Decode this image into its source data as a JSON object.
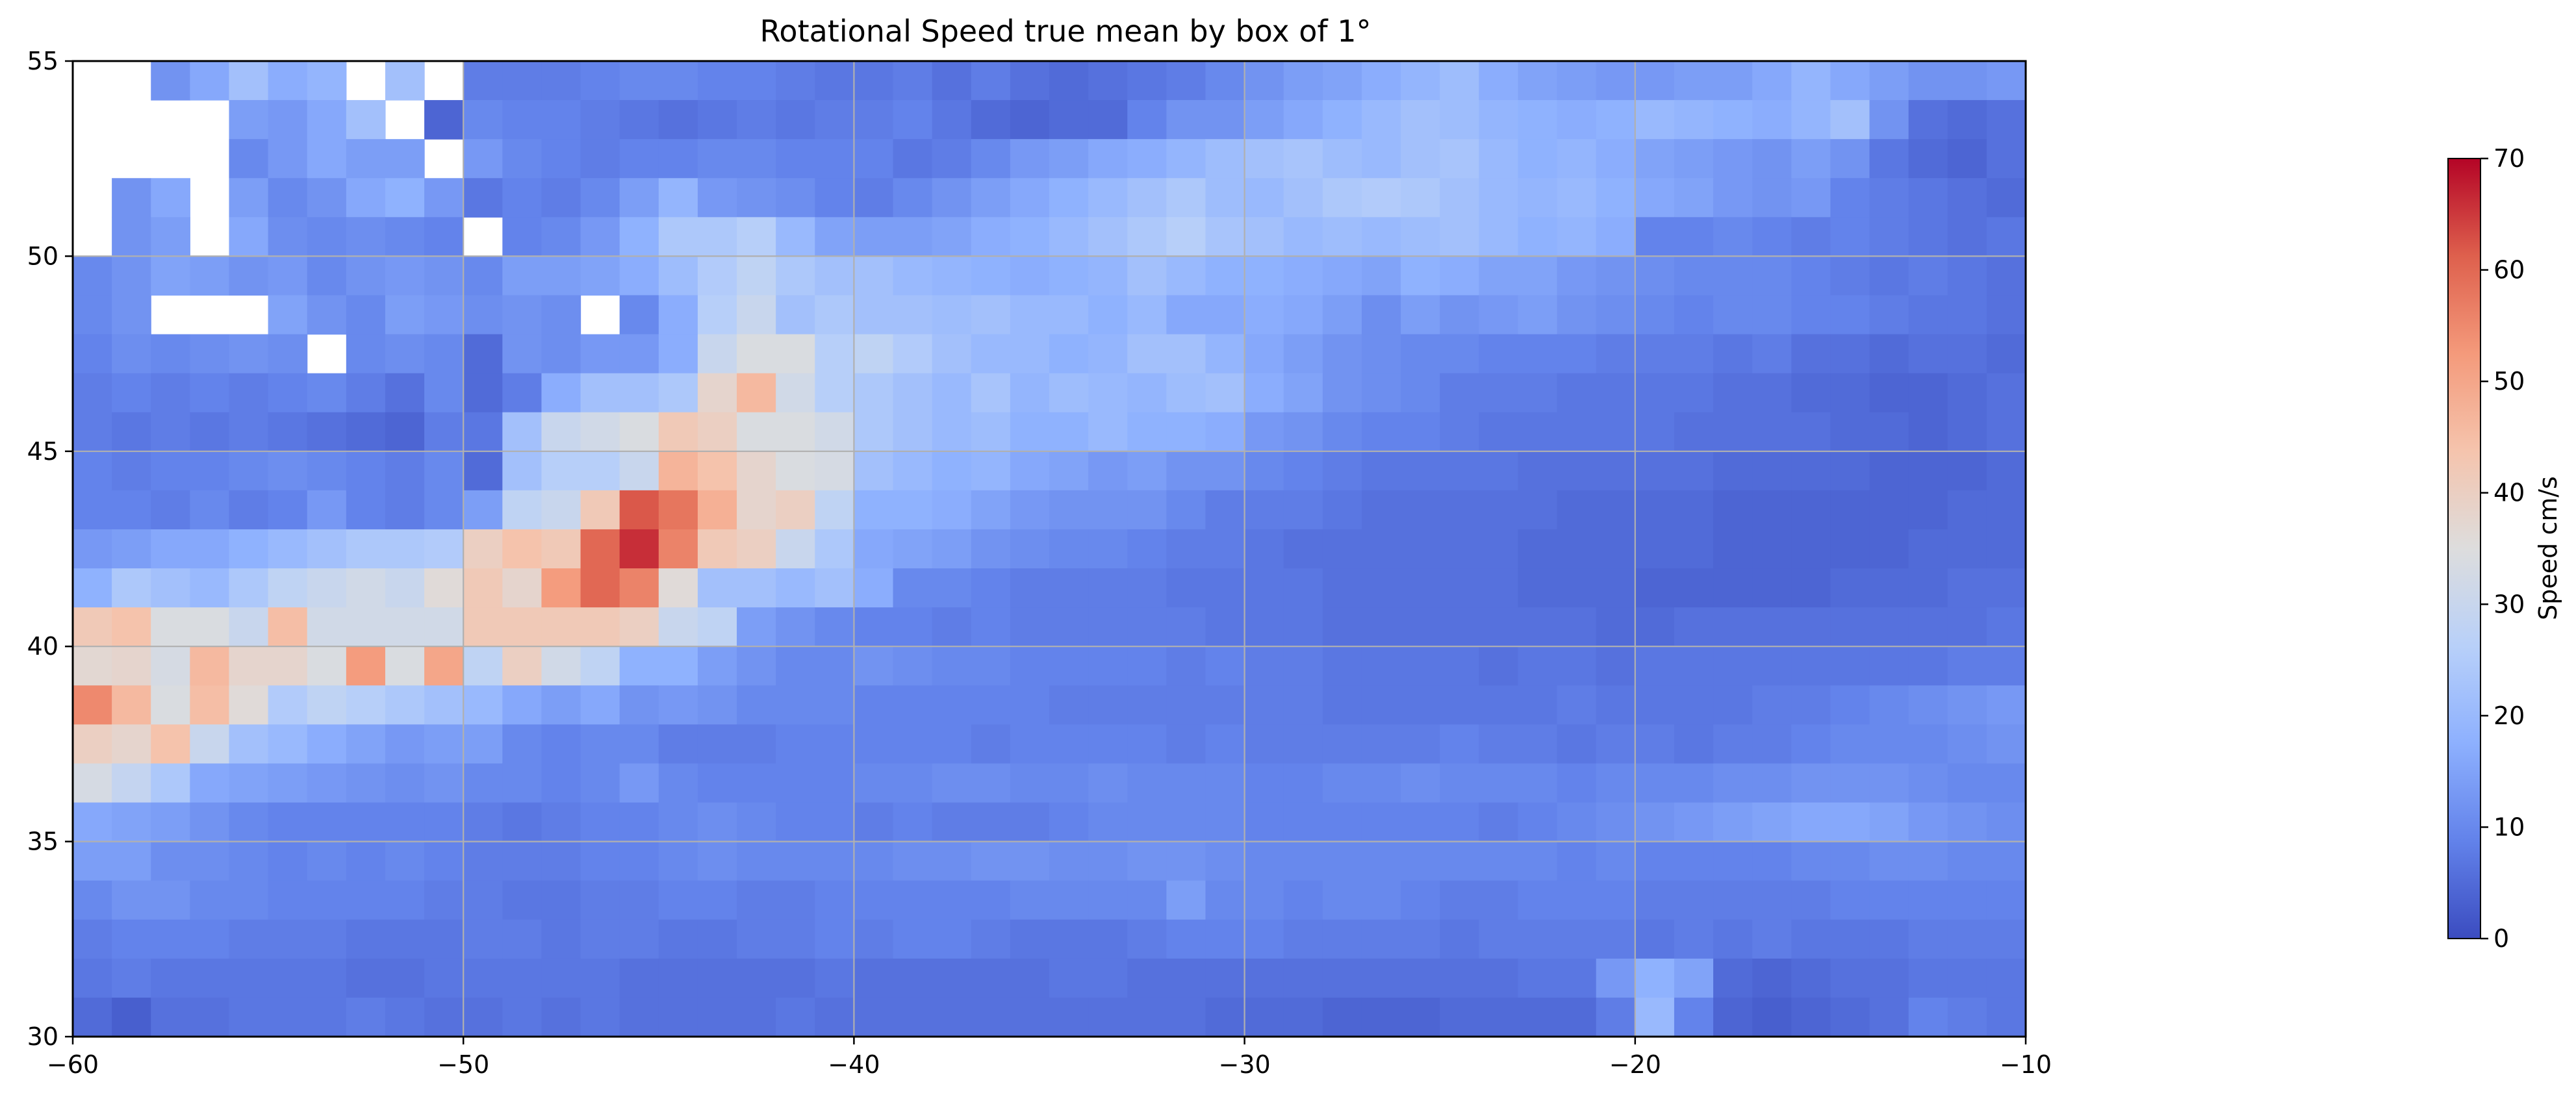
{
  "chart_data": {
    "type": "heatmap",
    "title": "Rotational Speed true mean by box of 1°",
    "xlabel": "",
    "ylabel": "",
    "xlim": [
      -60,
      -10
    ],
    "ylim": [
      30,
      55
    ],
    "xticks": [
      -60,
      -50,
      -40,
      -30,
      -20,
      -10
    ],
    "yticks": [
      30,
      35,
      40,
      45,
      50,
      55
    ],
    "grid": true,
    "colormap": "coolwarm",
    "colorbar": {
      "label": "Speed cm/s",
      "vmin": 0,
      "vmax": 70,
      "ticks": [
        0,
        10,
        20,
        30,
        40,
        50,
        60,
        70
      ]
    },
    "cell_size_deg": 1,
    "rows_from_lat": 55,
    "cols_from_lon": -60,
    "values": [
      [
        null,
        null,
        12,
        16,
        22,
        17,
        19,
        null,
        22,
        null,
        8,
        8,
        8,
        9,
        10,
        10,
        9,
        9,
        8,
        7,
        7,
        8,
        6,
        8,
        6,
        5,
        6,
        7,
        8,
        10,
        12,
        14,
        15,
        17,
        19,
        21,
        17,
        15,
        14,
        13,
        13,
        14,
        14,
        16,
        19,
        16,
        14,
        12,
        12,
        13
      ],
      [
        null,
        null,
        null,
        null,
        14,
        13,
        16,
        22,
        null,
        4,
        10,
        9,
        9,
        8,
        7,
        6,
        7,
        8,
        7,
        8,
        8,
        9,
        7,
        5,
        4,
        5,
        5,
        9,
        12,
        12,
        14,
        16,
        18,
        20,
        22,
        21,
        19,
        18,
        17,
        18,
        20,
        19,
        18,
        17,
        19,
        22,
        12,
        6,
        5,
        6
      ],
      [
        null,
        null,
        null,
        null,
        10,
        13,
        16,
        14,
        14,
        null,
        13,
        10,
        9,
        8,
        9,
        9,
        10,
        10,
        9,
        9,
        9,
        7,
        8,
        10,
        13,
        14,
        16,
        17,
        19,
        21,
        22,
        23,
        21,
        20,
        22,
        23,
        20,
        18,
        19,
        17,
        15,
        14,
        13,
        12,
        14,
        12,
        7,
        5,
        4,
        6
      ],
      [
        null,
        12,
        16,
        null,
        14,
        10,
        12,
        16,
        18,
        13,
        7,
        9,
        8,
        10,
        14,
        19,
        13,
        12,
        11,
        9,
        8,
        10,
        12,
        14,
        16,
        18,
        20,
        22,
        24,
        21,
        20,
        22,
        24,
        25,
        24,
        22,
        20,
        19,
        20,
        18,
        16,
        15,
        13,
        12,
        13,
        9,
        8,
        7,
        6,
        5
      ],
      [
        null,
        12,
        14,
        null,
        16,
        11,
        10,
        11,
        10,
        9,
        null,
        9,
        10,
        13,
        18,
        24,
        24,
        26,
        20,
        15,
        14,
        14,
        15,
        17,
        18,
        20,
        22,
        24,
        26,
        23,
        22,
        20,
        21,
        20,
        21,
        22,
        20,
        18,
        19,
        17,
        9,
        9,
        10,
        9,
        8,
        9,
        8,
        7,
        6,
        7
      ],
      [
        10,
        12,
        15,
        14,
        12,
        13,
        10,
        12,
        13,
        12,
        10,
        14,
        14,
        15,
        17,
        21,
        25,
        28,
        24,
        22,
        22,
        20,
        19,
        18,
        17,
        18,
        19,
        22,
        20,
        18,
        18,
        17,
        16,
        15,
        18,
        17,
        15,
        15,
        13,
        12,
        11,
        10,
        10,
        10,
        9,
        8,
        7,
        8,
        7,
        6
      ],
      [
        10,
        12,
        null,
        null,
        null,
        15,
        12,
        10,
        14,
        13,
        11,
        12,
        11,
        null,
        10,
        17,
        26,
        30,
        22,
        24,
        22,
        22,
        21,
        22,
        20,
        20,
        18,
        20,
        16,
        16,
        17,
        16,
        14,
        11,
        14,
        12,
        13,
        14,
        12,
        11,
        10,
        9,
        10,
        10,
        9,
        9,
        8,
        7,
        7,
        6
      ],
      [
        9,
        11,
        10,
        11,
        12,
        11,
        null,
        10,
        11,
        10,
        5,
        12,
        11,
        13,
        13,
        17,
        30,
        34,
        34,
        26,
        28,
        25,
        22,
        20,
        20,
        18,
        19,
        22,
        22,
        19,
        16,
        14,
        12,
        11,
        10,
        10,
        9,
        9,
        9,
        8,
        8,
        8,
        7,
        8,
        6,
        6,
        5,
        6,
        6,
        5
      ],
      [
        8,
        9,
        8,
        9,
        8,
        9,
        10,
        8,
        6,
        10,
        5,
        8,
        17,
        22,
        22,
        24,
        38,
        46,
        32,
        26,
        24,
        22,
        20,
        23,
        19,
        21,
        20,
        19,
        21,
        22,
        17,
        15,
        12,
        11,
        10,
        8,
        8,
        8,
        7,
        7,
        7,
        7,
        6,
        6,
        5,
        5,
        4,
        4,
        5,
        6
      ],
      [
        8,
        7,
        8,
        7,
        8,
        7,
        6,
        5,
        4,
        8,
        7,
        22,
        30,
        32,
        34,
        42,
        40,
        34,
        34,
        32,
        24,
        22,
        20,
        21,
        18,
        18,
        20,
        18,
        18,
        17,
        13,
        12,
        10,
        9,
        9,
        8,
        7,
        7,
        7,
        7,
        7,
        6,
        6,
        6,
        6,
        5,
        5,
        4,
        5,
        6
      ],
      [
        9,
        8,
        9,
        9,
        10,
        11,
        10,
        9,
        8,
        10,
        5,
        22,
        26,
        26,
        30,
        47,
        44,
        38,
        34,
        33,
        22,
        20,
        18,
        19,
        16,
        15,
        13,
        14,
        12,
        12,
        10,
        9,
        8,
        7,
        7,
        7,
        7,
        6,
        6,
        6,
        6,
        6,
        5,
        5,
        5,
        5,
        4,
        4,
        4,
        5
      ],
      [
        9,
        9,
        8,
        10,
        8,
        9,
        13,
        9,
        8,
        10,
        14,
        28,
        30,
        42,
        62,
        58,
        48,
        38,
        40,
        28,
        18,
        18,
        17,
        15,
        13,
        12,
        12,
        12,
        10,
        8,
        8,
        8,
        7,
        6,
        6,
        6,
        6,
        6,
        5,
        5,
        5,
        5,
        4,
        4,
        4,
        4,
        4,
        4,
        5,
        5
      ],
      [
        13,
        14,
        16,
        16,
        18,
        20,
        22,
        24,
        24,
        25,
        40,
        44,
        42,
        60,
        66,
        56,
        42,
        40,
        30,
        24,
        16,
        15,
        14,
        12,
        11,
        10,
        10,
        9,
        8,
        8,
        7,
        6,
        6,
        6,
        6,
        6,
        6,
        5,
        5,
        5,
        5,
        5,
        4,
        4,
        4,
        4,
        4,
        5,
        5,
        5
      ],
      [
        18,
        24,
        22,
        20,
        24,
        28,
        30,
        32,
        30,
        36,
        42,
        38,
        52,
        60,
        56,
        36,
        22,
        22,
        20,
        22,
        17,
        10,
        10,
        9,
        8,
        8,
        8,
        8,
        7,
        7,
        7,
        7,
        6,
        6,
        6,
        6,
        6,
        5,
        5,
        5,
        4,
        4,
        4,
        4,
        4,
        5,
        5,
        5,
        6,
        6
      ],
      [
        42,
        44,
        34,
        34,
        30,
        45,
        32,
        32,
        32,
        32,
        42,
        42,
        42,
        42,
        40,
        30,
        28,
        14,
        12,
        10,
        9,
        9,
        8,
        9,
        8,
        8,
        8,
        8,
        8,
        7,
        7,
        7,
        6,
        6,
        6,
        6,
        6,
        6,
        6,
        5,
        5,
        6,
        6,
        6,
        6,
        6,
        6,
        6,
        6,
        7
      ],
      [
        37,
        38,
        33,
        46,
        38,
        38,
        34,
        52,
        34,
        50,
        28,
        40,
        32,
        28,
        18,
        18,
        14,
        12,
        10,
        10,
        12,
        11,
        10,
        10,
        9,
        9,
        9,
        9,
        8,
        9,
        8,
        8,
        7,
        7,
        7,
        7,
        6,
        7,
        7,
        6,
        7,
        7,
        7,
        7,
        7,
        7,
        7,
        7,
        8,
        8
      ],
      [
        55,
        46,
        34,
        45,
        36,
        25,
        28,
        26,
        24,
        22,
        20,
        16,
        14,
        16,
        12,
        13,
        12,
        10,
        10,
        10,
        9,
        9,
        9,
        9,
        9,
        8,
        8,
        8,
        8,
        8,
        8,
        8,
        7,
        7,
        7,
        7,
        7,
        7,
        8,
        7,
        7,
        7,
        7,
        8,
        8,
        9,
        10,
        11,
        12,
        13
      ],
      [
        40,
        38,
        44,
        30,
        22,
        20,
        17,
        15,
        13,
        14,
        14,
        10,
        9,
        10,
        10,
        8,
        8,
        8,
        9,
        9,
        9,
        9,
        9,
        8,
        9,
        9,
        9,
        9,
        8,
        9,
        8,
        8,
        8,
        8,
        8,
        9,
        8,
        8,
        7,
        8,
        8,
        7,
        8,
        8,
        9,
        10,
        10,
        10,
        11,
        12
      ],
      [
        33,
        29,
        24,
        16,
        15,
        14,
        13,
        12,
        11,
        12,
        10,
        10,
        9,
        10,
        13,
        10,
        9,
        9,
        9,
        9,
        10,
        10,
        11,
        11,
        10,
        10,
        11,
        10,
        10,
        10,
        9,
        9,
        10,
        10,
        11,
        10,
        10,
        10,
        9,
        10,
        10,
        10,
        11,
        11,
        12,
        12,
        12,
        11,
        10,
        10
      ],
      [
        16,
        15,
        14,
        12,
        10,
        9,
        9,
        9,
        9,
        9,
        8,
        7,
        8,
        9,
        9,
        10,
        11,
        10,
        9,
        9,
        8,
        9,
        8,
        8,
        8,
        9,
        10,
        10,
        10,
        10,
        9,
        9,
        9,
        9,
        9,
        9,
        8,
        9,
        10,
        11,
        12,
        13,
        14,
        15,
        16,
        16,
        15,
        13,
        12,
        11
      ],
      [
        14,
        14,
        11,
        11,
        10,
        9,
        10,
        9,
        10,
        9,
        8,
        8,
        8,
        9,
        9,
        10,
        11,
        10,
        10,
        10,
        10,
        11,
        11,
        12,
        12,
        11,
        11,
        12,
        12,
        11,
        10,
        10,
        10,
        10,
        10,
        10,
        10,
        10,
        9,
        10,
        9,
        9,
        9,
        9,
        10,
        10,
        11,
        11,
        10,
        10
      ],
      [
        10,
        12,
        12,
        10,
        10,
        9,
        9,
        9,
        9,
        8,
        8,
        7,
        7,
        8,
        8,
        9,
        9,
        8,
        8,
        9,
        9,
        9,
        9,
        9,
        10,
        10,
        10,
        10,
        14,
        10,
        10,
        9,
        10,
        10,
        9,
        8,
        8,
        9,
        9,
        9,
        8,
        8,
        8,
        8,
        8,
        9,
        9,
        9,
        9,
        9
      ],
      [
        8,
        9,
        9,
        9,
        8,
        8,
        8,
        7,
        7,
        7,
        8,
        8,
        7,
        8,
        8,
        7,
        7,
        8,
        8,
        9,
        8,
        9,
        9,
        8,
        7,
        7,
        7,
        8,
        9,
        9,
        9,
        8,
        8,
        8,
        8,
        7,
        8,
        8,
        8,
        8,
        7,
        8,
        7,
        8,
        7,
        7,
        7,
        8,
        8,
        8
      ],
      [
        7,
        8,
        7,
        7,
        7,
        7,
        7,
        6,
        6,
        7,
        7,
        7,
        7,
        7,
        6,
        6,
        6,
        6,
        6,
        7,
        6,
        6,
        6,
        6,
        6,
        7,
        7,
        6,
        6,
        6,
        6,
        6,
        6,
        6,
        6,
        6,
        6,
        7,
        7,
        13,
        18,
        15,
        5,
        4,
        5,
        6,
        6,
        7,
        7,
        7
      ],
      [
        5,
        3,
        6,
        6,
        7,
        7,
        7,
        8,
        7,
        6,
        6,
        7,
        6,
        7,
        6,
        6,
        6,
        6,
        7,
        6,
        6,
        6,
        6,
        6,
        6,
        6,
        6,
        6,
        6,
        5,
        5,
        5,
        4,
        4,
        4,
        5,
        5,
        5,
        5,
        8,
        20,
        9,
        4,
        3,
        4,
        5,
        6,
        9,
        8,
        7
      ]
    ]
  }
}
